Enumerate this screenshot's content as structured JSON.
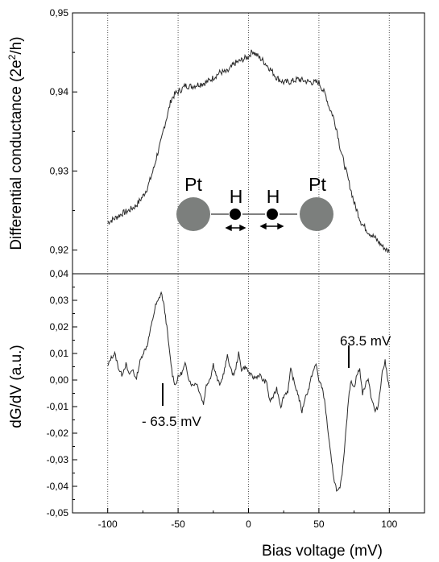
{
  "chart_data": [
    {
      "type": "line",
      "panel": "top",
      "ylabel_main": "Differential conductance (2e",
      "ylabel_sup": "2",
      "ylabel_end": "/h)",
      "xlim": [
        -125,
        125
      ],
      "ylim": [
        0.917,
        0.95
      ],
      "axis_break": {
        "value": 0.04,
        "label": "0,04"
      },
      "y_ticks": [
        {
          "value": 0.92,
          "label": "0,92"
        },
        {
          "value": 0.93,
          "label": "0,93"
        },
        {
          "value": 0.94,
          "label": "0,94"
        },
        {
          "value": 0.95,
          "label": "0,95"
        }
      ],
      "grid": "vertical dotted at x = -100, -50, 0, 50, 100",
      "series": [
        {
          "x": [
            -100,
            -95,
            -90,
            -85,
            -80,
            -75,
            -72,
            -70,
            -67,
            -65,
            -62,
            -60,
            -57,
            -55,
            -52,
            -50,
            -47,
            -45,
            -40,
            -35,
            -30,
            -25,
            -20,
            -15,
            -10,
            -5,
            0,
            3,
            5,
            8,
            10,
            15,
            20,
            25,
            30,
            35,
            40,
            45,
            50,
            52,
            55,
            57,
            60,
            63,
            65,
            70,
            75,
            80,
            85,
            90,
            95,
            98,
            100
          ],
          "y": [
            0.9235,
            0.924,
            0.9246,
            0.925,
            0.9256,
            0.9268,
            0.9278,
            0.9288,
            0.9305,
            0.932,
            0.9338,
            0.9355,
            0.9375,
            0.939,
            0.9398,
            0.94,
            0.9404,
            0.9408,
            0.9407,
            0.941,
            0.9412,
            0.9418,
            0.9425,
            0.9425,
            0.9436,
            0.944,
            0.9445,
            0.9452,
            0.9448,
            0.9443,
            0.944,
            0.943,
            0.9418,
            0.9412,
            0.9413,
            0.9416,
            0.9414,
            0.9412,
            0.9412,
            0.9405,
            0.9395,
            0.9382,
            0.937,
            0.935,
            0.933,
            0.9295,
            0.926,
            0.9235,
            0.9223,
            0.9215,
            0.9205,
            0.92,
            0.9198
          ]
        }
      ],
      "inset": {
        "left_atom": "Pt",
        "right_atom": "Pt",
        "left_h": "H",
        "right_h": "H",
        "pt_color": "#7c7f7d"
      }
    },
    {
      "type": "line",
      "panel": "bottom",
      "ylabel": "dG/dV (a.u.)",
      "xlabel": "Bias voltage (mV)",
      "xlim": [
        -125,
        125
      ],
      "ylim": [
        -0.05,
        0.04
      ],
      "x_ticks": [
        {
          "value": -100,
          "label": "-100"
        },
        {
          "value": -50,
          "label": "-50"
        },
        {
          "value": 0,
          "label": "0"
        },
        {
          "value": 50,
          "label": "50"
        },
        {
          "value": 100,
          "label": "100"
        }
      ],
      "y_ticks": [
        {
          "value": 0.03,
          "label": "0,03"
        },
        {
          "value": 0.02,
          "label": "0,02"
        },
        {
          "value": 0.01,
          "label": "0,01"
        },
        {
          "value": 0.0,
          "label": "0,00"
        },
        {
          "value": -0.01,
          "label": "-0,01"
        },
        {
          "value": -0.02,
          "label": "-0,02"
        },
        {
          "value": -0.03,
          "label": "-0,03"
        },
        {
          "value": -0.04,
          "label": "-0,04"
        },
        {
          "value": -0.05,
          "label": "-0,05"
        }
      ],
      "grid": "vertical dotted at x = -100, -50, 0, 50, 100",
      "series": [
        {
          "x": [
            -100,
            -98,
            -95,
            -92,
            -90,
            -87,
            -85,
            -82,
            -80,
            -77,
            -75,
            -72,
            -70,
            -68,
            -66,
            -64,
            -62,
            -60,
            -58,
            -56,
            -54,
            -52,
            -50,
            -47,
            -45,
            -42,
            -40,
            -37,
            -35,
            -32,
            -30,
            -27,
            -25,
            -22,
            -20,
            -17,
            -15,
            -12,
            -10,
            -7,
            -5,
            -2,
            0,
            3,
            5,
            8,
            10,
            13,
            15,
            18,
            20,
            23,
            25,
            28,
            30,
            33,
            35,
            38,
            40,
            43,
            45,
            48,
            50,
            53,
            55,
            57,
            59,
            61,
            63,
            65,
            67,
            69,
            71,
            73,
            75,
            77,
            79,
            81,
            83,
            85,
            87,
            90,
            92,
            95,
            97,
            100
          ],
          "y": [
            0.005,
            0.008,
            0.01,
            0.004,
            0.002,
            0.006,
            0.002,
            0.004,
            0.0,
            0.007,
            0.01,
            0.013,
            0.018,
            0.023,
            0.028,
            0.03,
            0.033,
            0.028,
            0.02,
            0.01,
            0.002,
            -0.002,
            0.001,
            0.003,
            0.006,
            0.0,
            -0.002,
            -0.001,
            -0.004,
            -0.009,
            -0.002,
            0.001,
            0.006,
            0.0,
            -0.002,
            0.004,
            0.009,
            0.003,
            0.002,
            0.01,
            0.004,
            0.005,
            0.003,
            0.001,
            0.001,
            0.002,
            0.0,
            -0.001,
            -0.008,
            -0.006,
            -0.003,
            -0.01,
            -0.006,
            -0.004,
            0.004,
            -0.002,
            -0.005,
            -0.012,
            -0.007,
            -0.003,
            0.002,
            0.006,
            0.0,
            -0.004,
            -0.012,
            -0.022,
            -0.031,
            -0.038,
            -0.042,
            -0.041,
            -0.033,
            -0.02,
            -0.007,
            0.0,
            -0.003,
            0.002,
            0.004,
            -0.005,
            -0.002,
            0.001,
            -0.006,
            -0.012,
            -0.01,
            0.003,
            0.007,
            -0.003
          ]
        }
      ],
      "annotations": [
        {
          "text": "63.5 mV",
          "x": 63.5
        },
        {
          "text": "- 63.5 mV",
          "x": -63.5
        }
      ]
    }
  ]
}
